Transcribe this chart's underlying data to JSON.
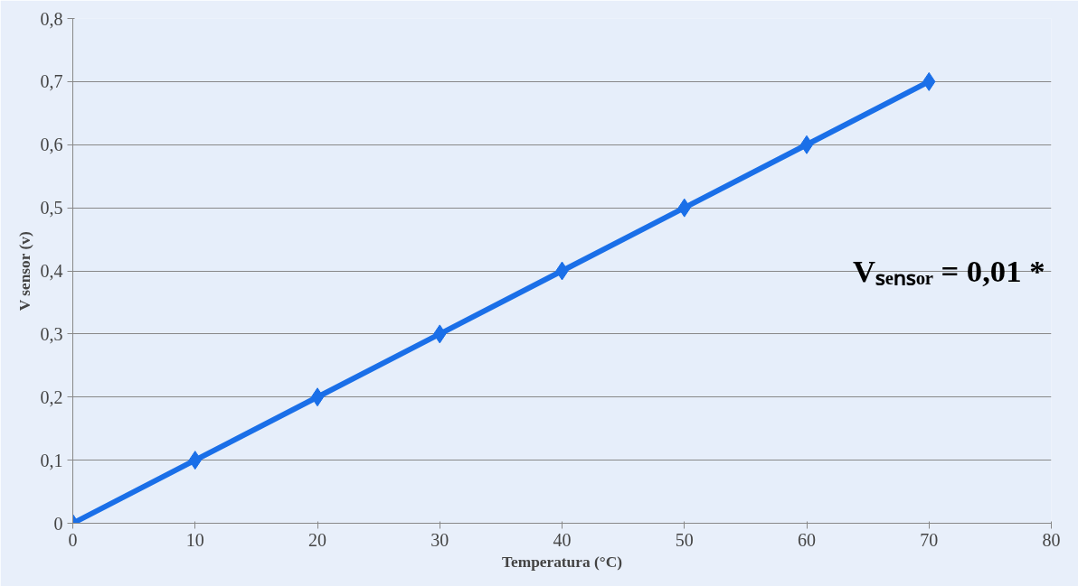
{
  "chart_data": {
    "type": "line",
    "xlabel": "Temperatura (°C)",
    "ylabel": "V sensor (v)",
    "x": [
      0,
      10,
      20,
      30,
      40,
      50,
      60,
      70
    ],
    "series": [
      {
        "color": "#1a6fe8",
        "values": [
          0,
          0.1,
          0.2,
          0.3,
          0.4,
          0.5,
          0.6,
          0.7
        ]
      }
    ],
    "xlim": [
      0,
      80
    ],
    "xticks": [
      0,
      10,
      20,
      30,
      40,
      50,
      60,
      70,
      80
    ],
    "ylim": [
      0,
      0.8
    ],
    "yticks": [
      {
        "value": 0,
        "label": "0"
      },
      {
        "value": 0.1,
        "label": "0,1"
      },
      {
        "value": 0.2,
        "label": "0,2"
      },
      {
        "value": 0.3,
        "label": "0,3"
      },
      {
        "value": 0.4,
        "label": "0,4"
      },
      {
        "value": 0.5,
        "label": "0,5"
      },
      {
        "value": 0.6,
        "label": "0,6"
      },
      {
        "value": 0.7,
        "label": "0,7"
      },
      {
        "value": 0.8,
        "label": "0,8"
      }
    ],
    "annotations": [
      "Vₛₑₙₛₒᵣ = 0,01 *"
    ],
    "grid": "y",
    "marker": "diamond",
    "line_style": "solid"
  }
}
